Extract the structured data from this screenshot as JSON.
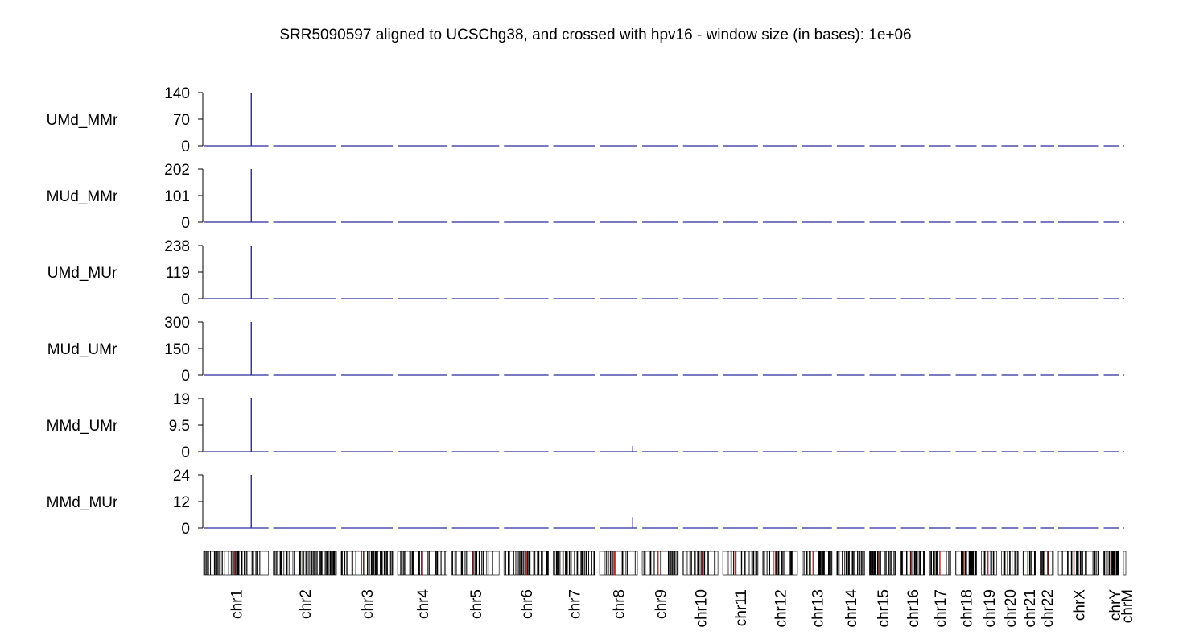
{
  "chart_data": {
    "type": "line",
    "title": "SRR5090597 aligned to UCSChg38, and crossed with hpv16 - window size (in bases):  1e+06",
    "xlabel": "",
    "ylabel": "",
    "colors": {
      "series": "#2b2b9a",
      "ideogram_band": "#000000",
      "ideogram_centromere": "#b03030",
      "ideogram_empty": "#dddddd"
    },
    "chromosomes": [
      {
        "name": "chr1",
        "length_mb": 249
      },
      {
        "name": "chr2",
        "length_mb": 242
      },
      {
        "name": "chr3",
        "length_mb": 198
      },
      {
        "name": "chr4",
        "length_mb": 190
      },
      {
        "name": "chr5",
        "length_mb": 181
      },
      {
        "name": "chr6",
        "length_mb": 171
      },
      {
        "name": "chr7",
        "length_mb": 159
      },
      {
        "name": "chr8",
        "length_mb": 145
      },
      {
        "name": "chr9",
        "length_mb": 138
      },
      {
        "name": "chr10",
        "length_mb": 134
      },
      {
        "name": "chr11",
        "length_mb": 135
      },
      {
        "name": "chr12",
        "length_mb": 133
      },
      {
        "name": "chr13",
        "length_mb": 114
      },
      {
        "name": "chr14",
        "length_mb": 107
      },
      {
        "name": "chr15",
        "length_mb": 102
      },
      {
        "name": "chr16",
        "length_mb": 90
      },
      {
        "name": "chr17",
        "length_mb": 83
      },
      {
        "name": "chr18",
        "length_mb": 80
      },
      {
        "name": "chr19",
        "length_mb": 59
      },
      {
        "name": "chr20",
        "length_mb": 64
      },
      {
        "name": "chr21",
        "length_mb": 47
      },
      {
        "name": "chr22",
        "length_mb": 51
      },
      {
        "name": "chrX",
        "length_mb": 156
      },
      {
        "name": "chrY",
        "length_mb": 57
      },
      {
        "name": "chrM",
        "length_mb": 0.02
      }
    ],
    "panels": [
      {
        "name": "UMd_MMr",
        "ylim": [
          0,
          140
        ],
        "yticks": [
          "140",
          "70",
          "0"
        ],
        "peaks": [
          {
            "chrom": "chr1",
            "pos_mb": 183,
            "value": 140
          }
        ]
      },
      {
        "name": "MUd_MMr",
        "ylim": [
          0,
          202
        ],
        "yticks": [
          "202",
          "101",
          "0"
        ],
        "peaks": [
          {
            "chrom": "chr1",
            "pos_mb": 183,
            "value": 202
          }
        ]
      },
      {
        "name": "UMd_MUr",
        "ylim": [
          0,
          238
        ],
        "yticks": [
          "238",
          "119",
          "0"
        ],
        "peaks": [
          {
            "chrom": "chr1",
            "pos_mb": 183,
            "value": 238
          }
        ]
      },
      {
        "name": "MUd_UMr",
        "ylim": [
          0,
          300
        ],
        "yticks": [
          "300",
          "150",
          "0"
        ],
        "peaks": [
          {
            "chrom": "chr1",
            "pos_mb": 183,
            "value": 300
          }
        ]
      },
      {
        "name": "MMd_UMr",
        "ylim": [
          0,
          19
        ],
        "yticks": [
          "19",
          "9.5",
          "0"
        ],
        "peaks": [
          {
            "chrom": "chr1",
            "pos_mb": 183,
            "value": 19
          },
          {
            "chrom": "chr8",
            "pos_mb": 127,
            "value": 2
          }
        ]
      },
      {
        "name": "MMd_MUr",
        "ylim": [
          0,
          24
        ],
        "yticks": [
          "24",
          "12",
          "0"
        ],
        "peaks": [
          {
            "chrom": "chr1",
            "pos_mb": 183,
            "value": 24
          },
          {
            "chrom": "chr8",
            "pos_mb": 127,
            "value": 5
          }
        ]
      }
    ]
  }
}
